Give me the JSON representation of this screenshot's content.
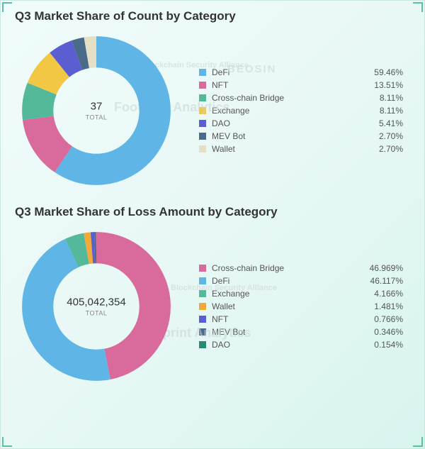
{
  "watermarks": {
    "w1": "Blockchain Security Alliance",
    "w2": "BEOSIN",
    "w3": "Footprint Analytics"
  },
  "chart1": {
    "type": "donut",
    "title": "Q3 Market Share of Count by Category",
    "center_value": "37",
    "center_caption": "TOTAL",
    "inner_radius_pct": 55,
    "outer_radius_pct": 95,
    "background_color": "transparent",
    "title_fontsize": 17,
    "legend_fontsize": 12,
    "series": [
      {
        "label": "DeFi",
        "pct_label": "59.46%",
        "value": 59.46,
        "color": "#5eb5e6"
      },
      {
        "label": "NFT",
        "pct_label": "13.51%",
        "value": 13.51,
        "color": "#d86a9c"
      },
      {
        "label": "Cross-chain Bridge",
        "pct_label": "8.11%",
        "value": 8.11,
        "color": "#54b99a"
      },
      {
        "label": "Exchange",
        "pct_label": "8.11%",
        "value": 8.11,
        "color": "#f2c744"
      },
      {
        "label": "DAO",
        "pct_label": "5.41%",
        "value": 5.41,
        "color": "#5a5ed1"
      },
      {
        "label": "MEV Bot",
        "pct_label": "2.70%",
        "value": 2.7,
        "color": "#4a6a8a"
      },
      {
        "label": "Wallet",
        "pct_label": "2.70%",
        "value": 2.7,
        "color": "#e5e0c5"
      }
    ]
  },
  "chart2": {
    "type": "donut",
    "title": "Q3 Market Share of Loss Amount by Category",
    "center_value": "405,042,354",
    "center_caption": "TOTAL",
    "inner_radius_pct": 55,
    "outer_radius_pct": 95,
    "background_color": "transparent",
    "title_fontsize": 17,
    "legend_fontsize": 12,
    "series": [
      {
        "label": "Cross-chain Bridge",
        "pct_label": "46.969%",
        "value": 46.969,
        "color": "#d86a9c"
      },
      {
        "label": "DeFi",
        "pct_label": "46.117%",
        "value": 46.117,
        "color": "#5eb5e6"
      },
      {
        "label": "Exchange",
        "pct_label": "4.166%",
        "value": 4.166,
        "color": "#54b99a"
      },
      {
        "label": "Wallet",
        "pct_label": "1.481%",
        "value": 1.481,
        "color": "#f2a93c"
      },
      {
        "label": "NFT",
        "pct_label": "0.766%",
        "value": 0.766,
        "color": "#5a5ed1"
      },
      {
        "label": "MEV Bot",
        "pct_label": "0.346%",
        "value": 0.346,
        "color": "#4a6a8a"
      },
      {
        "label": "DAO",
        "pct_label": "0.154%",
        "value": 0.154,
        "color": "#2a8a7a"
      }
    ]
  }
}
